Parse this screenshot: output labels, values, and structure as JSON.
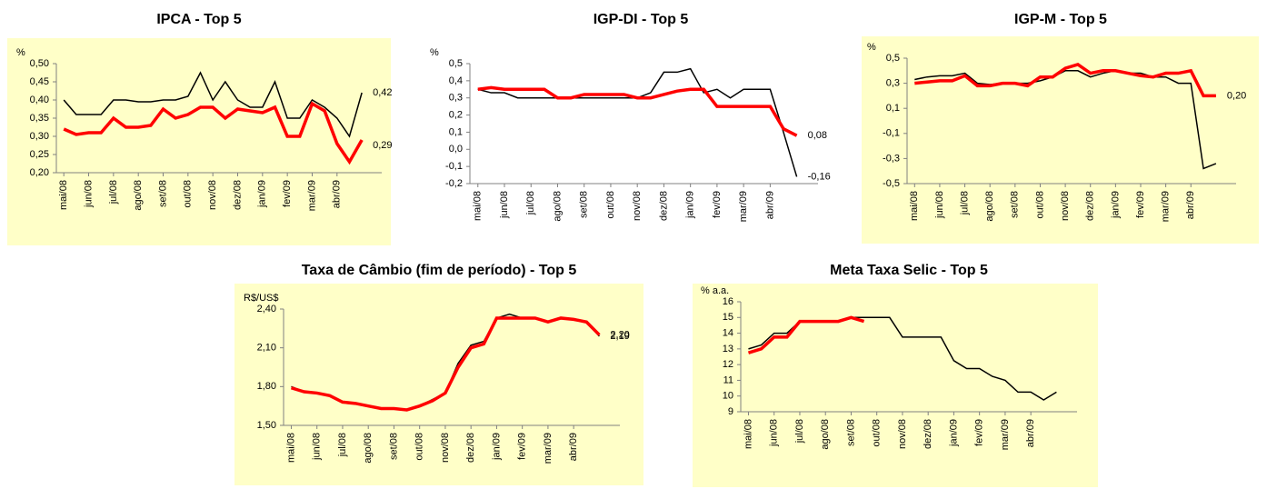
{
  "chart_data": [
    {
      "type": "line",
      "title": "IPCA - Top 5",
      "y_label": "%",
      "xlim": [
        -0.3,
        12.8
      ],
      "ylim": [
        0.2,
        0.5
      ],
      "yticks": [
        {
          "value": 0.2,
          "label": "0,20"
        },
        {
          "value": 0.25,
          "label": "0,25"
        },
        {
          "value": 0.3,
          "label": "0,30"
        },
        {
          "value": 0.35,
          "label": "0,35"
        },
        {
          "value": 0.4,
          "label": "0,40"
        },
        {
          "value": 0.45,
          "label": "0,45"
        },
        {
          "value": 0.5,
          "label": "0,50"
        }
      ],
      "xticks": [
        {
          "value": 0,
          "label": "mai/08"
        },
        {
          "value": 1,
          "label": "jun/08"
        },
        {
          "value": 2,
          "label": "jul/08"
        },
        {
          "value": 3,
          "label": "ago/08"
        },
        {
          "value": 4,
          "label": "set/08"
        },
        {
          "value": 5,
          "label": "out/08"
        },
        {
          "value": 6,
          "label": "nov/08"
        },
        {
          "value": 7,
          "label": "dez/08"
        },
        {
          "value": 8,
          "label": "jan/09"
        },
        {
          "value": 9,
          "label": "fev/09"
        },
        {
          "value": 10,
          "label": "mar/09"
        },
        {
          "value": 11,
          "label": "abr/09"
        }
      ],
      "x": [
        0,
        0.5,
        1,
        1.5,
        2,
        2.5,
        3,
        3.5,
        4,
        4.5,
        5,
        5.5,
        6,
        6.5,
        7,
        7.5,
        8,
        8.5,
        9,
        9.5,
        10,
        10.5,
        11,
        11.5,
        12
      ],
      "series": [
        {
          "color": "#000000",
          "values": [
            0.4,
            0.36,
            0.36,
            0.36,
            0.4,
            0.4,
            0.395,
            0.395,
            0.4,
            0.4,
            0.41,
            0.475,
            0.4,
            0.45,
            0.4,
            0.38,
            0.38,
            0.45,
            0.35,
            0.35,
            0.4,
            0.38,
            0.35,
            0.3,
            0.42
          ],
          "end_label": "0,42"
        },
        {
          "color": "#ff0000",
          "values": [
            0.32,
            0.305,
            0.31,
            0.31,
            0.35,
            0.325,
            0.325,
            0.33,
            0.375,
            0.35,
            0.36,
            0.38,
            0.38,
            0.35,
            0.375,
            0.37,
            0.365,
            0.38,
            0.3,
            0.3,
            0.39,
            0.37,
            0.28,
            0.23,
            0.29
          ],
          "end_label": "0,29"
        }
      ]
    },
    {
      "type": "line",
      "title": "IGP-DI - Top 5",
      "y_label": "%",
      "xlim": [
        -0.3,
        12.8
      ],
      "ylim": [
        -0.2,
        0.5
      ],
      "yticks": [
        {
          "value": -0.2,
          "label": "-0,2"
        },
        {
          "value": -0.1,
          "label": "-0,1"
        },
        {
          "value": 0,
          "label": "0,0"
        },
        {
          "value": 0.1,
          "label": "0,1"
        },
        {
          "value": 0.2,
          "label": "0,2"
        },
        {
          "value": 0.3,
          "label": "0,3"
        },
        {
          "value": 0.4,
          "label": "0,4"
        },
        {
          "value": 0.5,
          "label": "0,5"
        }
      ],
      "xticks": [
        {
          "value": 0,
          "label": "mai/08"
        },
        {
          "value": 1,
          "label": "jun/08"
        },
        {
          "value": 2,
          "label": "jul/08"
        },
        {
          "value": 3,
          "label": "ago/08"
        },
        {
          "value": 4,
          "label": "set/08"
        },
        {
          "value": 5,
          "label": "out/08"
        },
        {
          "value": 6,
          "label": "nov/08"
        },
        {
          "value": 7,
          "label": "dez/08"
        },
        {
          "value": 8,
          "label": "jan/09"
        },
        {
          "value": 9,
          "label": "fev/09"
        },
        {
          "value": 10,
          "label": "mar/09"
        },
        {
          "value": 11,
          "label": "abr/09"
        }
      ],
      "x": [
        0,
        0.5,
        1,
        1.5,
        2,
        2.5,
        3,
        3.5,
        4,
        4.5,
        5,
        5.5,
        6,
        6.5,
        7,
        7.5,
        8,
        8.5,
        9,
        9.5,
        10,
        10.5,
        11,
        11.5,
        12
      ],
      "series": [
        {
          "color": "#000000",
          "values": [
            0.35,
            0.33,
            0.33,
            0.3,
            0.3,
            0.3,
            0.3,
            0.3,
            0.3,
            0.3,
            0.3,
            0.3,
            0.3,
            0.33,
            0.45,
            0.45,
            0.47,
            0.33,
            0.35,
            0.3,
            0.35,
            0.35,
            0.35,
            0.1,
            -0.16
          ],
          "end_label": "-0,16"
        },
        {
          "color": "#ff0000",
          "values": [
            0.35,
            0.36,
            0.35,
            0.35,
            0.35,
            0.35,
            0.3,
            0.3,
            0.32,
            0.32,
            0.32,
            0.32,
            0.3,
            0.3,
            0.32,
            0.34,
            0.35,
            0.35,
            0.25,
            0.25,
            0.25,
            0.25,
            0.25,
            0.12,
            0.08
          ],
          "end_label": "0,08"
        }
      ]
    },
    {
      "type": "line",
      "title": "IGP-M - Top 5",
      "y_label": "%",
      "xlim": [
        -0.3,
        12.8
      ],
      "ylim": [
        -0.5,
        0.5
      ],
      "yticks": [
        {
          "value": -0.5,
          "label": "-0,5"
        },
        {
          "value": -0.3,
          "label": "-0,3"
        },
        {
          "value": -0.1,
          "label": "-0,1"
        },
        {
          "value": 0.1,
          "label": "0,1"
        },
        {
          "value": 0.3,
          "label": "0,3"
        },
        {
          "value": 0.5,
          "label": "0,5"
        }
      ],
      "xticks": [
        {
          "value": 0,
          "label": "mai/08"
        },
        {
          "value": 1,
          "label": "jun/08"
        },
        {
          "value": 2,
          "label": "jul/08"
        },
        {
          "value": 3,
          "label": "ago/08"
        },
        {
          "value": 4,
          "label": "set/08"
        },
        {
          "value": 5,
          "label": "out/08"
        },
        {
          "value": 6,
          "label": "nov/08"
        },
        {
          "value": 7,
          "label": "dez/08"
        },
        {
          "value": 8,
          "label": "jan/09"
        },
        {
          "value": 9,
          "label": "fev/09"
        },
        {
          "value": 10,
          "label": "mar/09"
        },
        {
          "value": 11,
          "label": "abr/09"
        }
      ],
      "x": [
        0,
        0.5,
        1,
        1.5,
        2,
        2.5,
        3,
        3.5,
        4,
        4.5,
        5,
        5.5,
        6,
        6.5,
        7,
        7.5,
        8,
        8.5,
        9,
        9.5,
        10,
        10.5,
        11,
        11.5,
        12
      ],
      "series": [
        {
          "color": "#000000",
          "values": [
            0.33,
            0.35,
            0.36,
            0.36,
            0.38,
            0.3,
            0.29,
            0.3,
            0.3,
            0.3,
            0.32,
            0.35,
            0.4,
            0.4,
            0.35,
            0.38,
            0.4,
            0.38,
            0.38,
            0.35,
            0.35,
            0.3,
            0.3,
            -0.38,
            -0.34
          ]
        },
        {
          "color": "#ff0000",
          "values": [
            0.3,
            0.31,
            0.32,
            0.32,
            0.36,
            0.28,
            0.28,
            0.3,
            0.3,
            0.28,
            0.35,
            0.35,
            0.42,
            0.45,
            0.38,
            0.4,
            0.4,
            0.38,
            0.36,
            0.35,
            0.38,
            0.38,
            0.4,
            0.2,
            0.2
          ],
          "end_label": "0,20"
        }
      ]
    },
    {
      "type": "line",
      "title": "Taxa de Câmbio (fim de período) - Top 5",
      "y_label": "R$/US$",
      "xlim": [
        -0.3,
        12.8
      ],
      "ylim": [
        1.5,
        2.4
      ],
      "yticks": [
        {
          "value": 1.5,
          "label": "1,50"
        },
        {
          "value": 1.8,
          "label": "1,80"
        },
        {
          "value": 2.1,
          "label": "2,10"
        },
        {
          "value": 2.4,
          "label": "2,40"
        }
      ],
      "xticks": [
        {
          "value": 0,
          "label": "mai/08"
        },
        {
          "value": 1,
          "label": "jun/08"
        },
        {
          "value": 2,
          "label": "jul/08"
        },
        {
          "value": 3,
          "label": "ago/08"
        },
        {
          "value": 4,
          "label": "set/08"
        },
        {
          "value": 5,
          "label": "out/08"
        },
        {
          "value": 6,
          "label": "nov/08"
        },
        {
          "value": 7,
          "label": "dez/08"
        },
        {
          "value": 8,
          "label": "jan/09"
        },
        {
          "value": 9,
          "label": "fev/09"
        },
        {
          "value": 10,
          "label": "mar/09"
        },
        {
          "value": 11,
          "label": "abr/09"
        }
      ],
      "x": [
        0,
        0.5,
        1,
        1.5,
        2,
        2.5,
        3,
        3.5,
        4,
        4.5,
        5,
        5.5,
        6,
        6.5,
        7,
        7.5,
        8,
        8.5,
        9,
        9.5,
        10,
        10.5,
        11,
        11.5,
        12
      ],
      "series": [
        {
          "color": "#000000",
          "values": [
            1.8,
            1.76,
            1.75,
            1.73,
            1.68,
            1.67,
            1.65,
            1.63,
            1.63,
            1.62,
            1.65,
            1.7,
            1.75,
            1.98,
            2.12,
            2.15,
            2.33,
            2.36,
            2.33,
            2.33,
            2.3,
            2.33,
            2.32,
            2.3,
            2.19
          ],
          "end_label": "2,19"
        },
        {
          "color": "#ff0000",
          "values": [
            1.79,
            1.76,
            1.75,
            1.73,
            1.68,
            1.67,
            1.65,
            1.63,
            1.63,
            1.62,
            1.65,
            1.69,
            1.75,
            1.95,
            2.1,
            2.13,
            2.33,
            2.33,
            2.33,
            2.33,
            2.3,
            2.33,
            2.32,
            2.3,
            2.2
          ],
          "end_label": "2,20"
        }
      ]
    },
    {
      "type": "line",
      "title": "Meta Taxa Selic - Top 5",
      "y_label": "% a.a.",
      "xlim": [
        -0.3,
        12.8
      ],
      "ylim": [
        9,
        16
      ],
      "yticks": [
        9,
        10,
        11,
        12,
        13,
        14,
        15,
        16
      ],
      "xticks": [
        {
          "value": 0,
          "label": "mai/08"
        },
        {
          "value": 1,
          "label": "jun/08"
        },
        {
          "value": 2,
          "label": "jul/08"
        },
        {
          "value": 3,
          "label": "ago/08"
        },
        {
          "value": 4,
          "label": "set/08"
        },
        {
          "value": 5,
          "label": "out/08"
        },
        {
          "value": 6,
          "label": "nov/08"
        },
        {
          "value": 7,
          "label": "dez/08"
        },
        {
          "value": 8,
          "label": "jan/09"
        },
        {
          "value": 9,
          "label": "fev/09"
        },
        {
          "value": 10,
          "label": "mar/09"
        },
        {
          "value": 11,
          "label": "abr/09"
        }
      ],
      "x": [
        0,
        0.5,
        1,
        1.5,
        2,
        2.5,
        3,
        3.5,
        4,
        4.5,
        5,
        5.5,
        6,
        6.5,
        7,
        7.5,
        8,
        8.5,
        9,
        9.5,
        10,
        10.5,
        11,
        11.5,
        12
      ],
      "series": [
        {
          "color": "#000000",
          "values": [
            13,
            13.25,
            14,
            14,
            14.75,
            14.75,
            14.75,
            14.75,
            15,
            15,
            15,
            15,
            13.75,
            13.75,
            13.75,
            13.75,
            12.25,
            11.75,
            11.75,
            11.25,
            11,
            10.25,
            10.25,
            9.75,
            10.25
          ]
        },
        {
          "color": "#ff0000",
          "values": [
            12.75,
            13,
            13.75,
            13.75,
            14.75,
            14.75,
            14.75,
            14.75,
            15,
            14.75,
            null,
            null,
            null,
            null,
            null,
            null,
            null,
            null,
            null,
            null,
            null,
            null,
            null,
            null,
            null
          ]
        }
      ]
    }
  ]
}
